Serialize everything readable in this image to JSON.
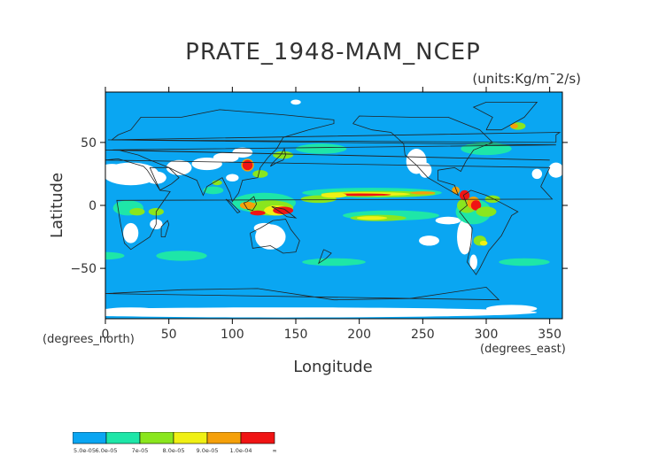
{
  "chart_data": {
    "type": "heatmap",
    "title": "PRATE_1948-MAM_NCEP",
    "units": "(units:Kg/m¯2/s)",
    "xlabel": "Longitude",
    "ylabel": "Latitude",
    "x_units": "(degrees_east)",
    "y_units": "(degrees_north)",
    "xlim": [
      0,
      360
    ],
    "ylim": [
      -90,
      90
    ],
    "x_ticks": [
      0,
      50,
      100,
      150,
      200,
      250,
      300,
      350
    ],
    "y_ticks": [
      50,
      0,
      -50
    ],
    "y_tick_labels": [
      "50",
      "0",
      "−50"
    ],
    "colorbar": {
      "labels": [
        "5.0e-05",
        "6.0e-05",
        "7e-05",
        "8.0e-05",
        "9.0e-05",
        "1.0e-04",
        "∞"
      ],
      "colors": [
        "#0aa6f2",
        "#1ee6a8",
        "#8ae61e",
        "#f0f014",
        "#f5a00a",
        "#f01414"
      ]
    },
    "field_levels": [
      {
        "level": "5e-05 to 6e-05",
        "color": "#0aa6f2"
      },
      {
        "level": "6e-05 to 7e-05",
        "color": "#1ee6a8"
      },
      {
        "level": "7e-05 to 8e-05",
        "color": "#8ae61e"
      },
      {
        "level": "8e-05 to 9e-05",
        "color": "#f0f014"
      },
      {
        "level": "9e-05 to 1e-04",
        "color": "#f5a00a"
      },
      {
        "level": ">1e-04",
        "color": "#f01414"
      }
    ],
    "below_min_color": "#ffffff",
    "grid": false
  }
}
